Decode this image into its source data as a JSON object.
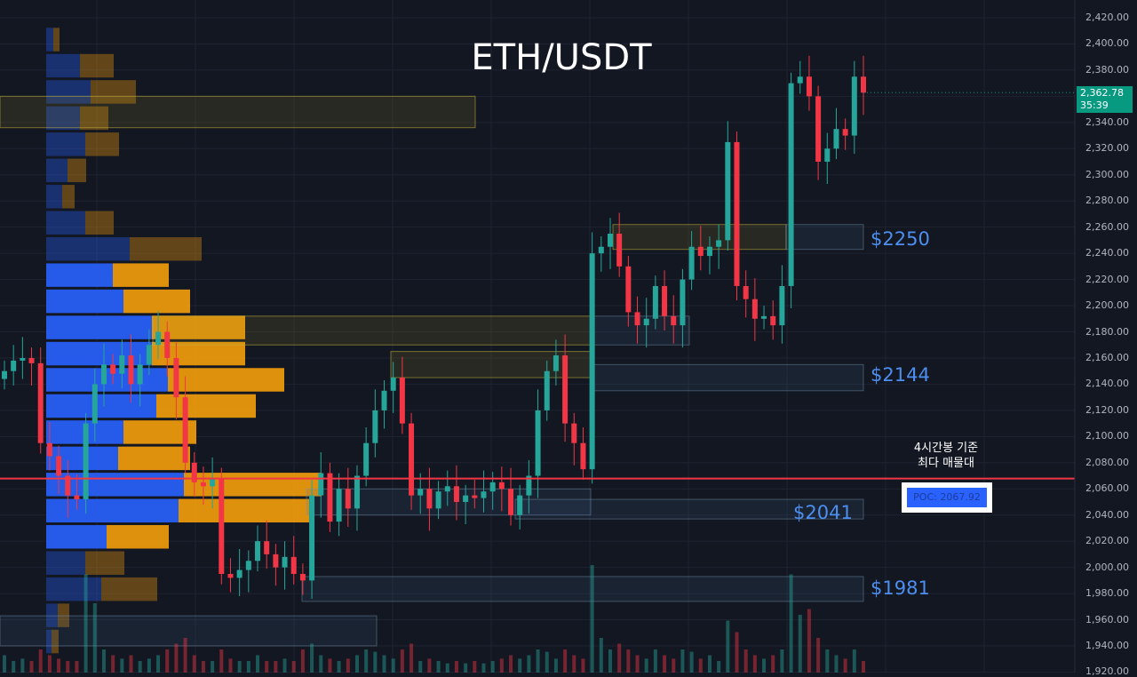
{
  "title": "ETH/USDT",
  "colors": {
    "background": "#131722",
    "up": "#26a69a",
    "down": "#f23645",
    "profile_up": "#2962ff",
    "profile_down": "#f59e0b",
    "poc_line": "#f23645",
    "level_text": "#4d8ff0"
  },
  "current_price": {
    "price": "2,362.78",
    "countdown": "35:39"
  },
  "annotation": {
    "line1": "4시간봉 기준",
    "line2": "최다 매물대"
  },
  "poc_label": "POC: 2067.92",
  "level_labels": [
    "$2250",
    "$2144",
    "$2041",
    "$1981"
  ],
  "chart_data": {
    "type": "candlestick",
    "title": "ETH/USDT",
    "ylim": [
      1930,
      2430
    ],
    "y_ticks": [
      "2,420.00",
      "2,400.00",
      "2,380.00",
      "2,360.00",
      "2,340.00",
      "2,320.00",
      "2,300.00",
      "2,280.00",
      "2,260.00",
      "2,240.00",
      "2,220.00",
      "2,200.00",
      "2,180.00",
      "2,160.00",
      "2,140.00",
      "2,120.00",
      "2,100.00",
      "2,080.00",
      "2,060.00",
      "2,040.00",
      "2,020.00",
      "2,000.00",
      "1,980.00",
      "1,960.00",
      "1,940.00",
      "1,920.00"
    ],
    "grid": true,
    "closes": [
      2150,
      2158,
      2160,
      2156,
      2095,
      2085,
      2070,
      2055,
      2052,
      2110,
      2140,
      2155,
      2148,
      2162,
      2140,
      2155,
      2170,
      2180,
      2160,
      2130,
      2080,
      2065,
      2062,
      2068,
      1995,
      1992,
      1998,
      2005,
      2020,
      2010,
      2000,
      2008,
      1995,
      1990,
      2055,
      2072,
      2035,
      2060,
      2045,
      2070,
      2095,
      2120,
      2135,
      2145,
      2110,
      2055,
      2060,
      2045,
      2058,
      2062,
      2050,
      2055,
      2053,
      2058,
      2065,
      2060,
      2040,
      2055,
      2070,
      2120,
      2150,
      2162,
      2110,
      2095,
      2075,
      2240,
      2245,
      2255,
      2230,
      2195,
      2185,
      2190,
      2215,
      2192,
      2185,
      2220,
      2245,
      2238,
      2245,
      2250,
      2325,
      2215,
      2205,
      2190,
      2192,
      2185,
      2215,
      2370,
      2375,
      2360,
      2310,
      2320,
      2335,
      2330,
      2375,
      2362.78
    ],
    "volumes": [
      0.15,
      0.1,
      0.12,
      0.1,
      0.2,
      0.15,
      0.12,
      0.1,
      0.1,
      0.85,
      0.6,
      0.2,
      0.15,
      0.12,
      0.15,
      0.1,
      0.12,
      0.15,
      0.2,
      0.25,
      0.3,
      0.15,
      0.1,
      0.1,
      0.2,
      0.12,
      0.1,
      0.1,
      0.15,
      0.1,
      0.1,
      0.12,
      0.1,
      0.2,
      0.25,
      0.15,
      0.12,
      0.1,
      0.12,
      0.15,
      0.2,
      0.18,
      0.15,
      0.12,
      0.2,
      0.25,
      0.1,
      0.12,
      0.1,
      0.08,
      0.1,
      0.08,
      0.1,
      0.08,
      0.1,
      0.12,
      0.15,
      0.12,
      0.15,
      0.2,
      0.18,
      0.12,
      0.2,
      0.15,
      0.12,
      0.93,
      0.3,
      0.2,
      0.25,
      0.2,
      0.15,
      0.12,
      0.2,
      0.15,
      0.12,
      0.2,
      0.18,
      0.12,
      0.15,
      0.1,
      0.45,
      0.35,
      0.2,
      0.15,
      0.12,
      0.15,
      0.2,
      0.85,
      0.5,
      0.55,
      0.3,
      0.2,
      0.15,
      0.12,
      0.2,
      0.1
    ],
    "volume_profile": {
      "bin_size": 20,
      "bin_tops": [
        2413,
        2393,
        2373,
        2353,
        2333,
        2313,
        2293,
        2273,
        2253,
        2233,
        2213,
        2193,
        2173,
        2153,
        2133,
        2113,
        2093,
        2073,
        2053,
        2033,
        2013,
        1993,
        1973,
        1953
      ],
      "up_volume": [
        8,
        38,
        50,
        38,
        44,
        24,
        18,
        44,
        94,
        75,
        87,
        119,
        119,
        137,
        124,
        87,
        81,
        155,
        149,
        68,
        44,
        62,
        13,
        6
      ],
      "down_volume": [
        7,
        38,
        51,
        32,
        38,
        21,
        14,
        32,
        81,
        63,
        75,
        105,
        105,
        131,
        112,
        82,
        81,
        155,
        147,
        70,
        44,
        63,
        13,
        8
      ],
      "value_area_bins": [
        9,
        10,
        11,
        12,
        13,
        14,
        15,
        16,
        17,
        18,
        19
      ],
      "poc": 2067.92
    },
    "zones": [
      {
        "kind": "supply",
        "top": 2360,
        "bottom": 2336
      },
      {
        "kind": "supply",
        "top": 2192,
        "bottom": 2170
      },
      {
        "kind": "supply",
        "top": 2165,
        "bottom": 2145
      },
      {
        "kind": "supply",
        "top": 2262,
        "bottom": 2243
      },
      {
        "kind": "demand",
        "top": 2192,
        "bottom": 2170,
        "label": ""
      },
      {
        "kind": "demand",
        "top": 2155,
        "bottom": 2135,
        "label": "$2144"
      },
      {
        "kind": "demand",
        "top": 2262,
        "bottom": 2243,
        "label": "$2250"
      },
      {
        "kind": "demand",
        "top": 2060,
        "bottom": 2040
      },
      {
        "kind": "demand",
        "top": 2052,
        "bottom": 2037,
        "label": "$2041"
      },
      {
        "kind": "demand",
        "top": 1993,
        "bottom": 1974,
        "label": "$1981"
      },
      {
        "kind": "demand",
        "top": 1963,
        "bottom": 1940
      }
    ]
  }
}
